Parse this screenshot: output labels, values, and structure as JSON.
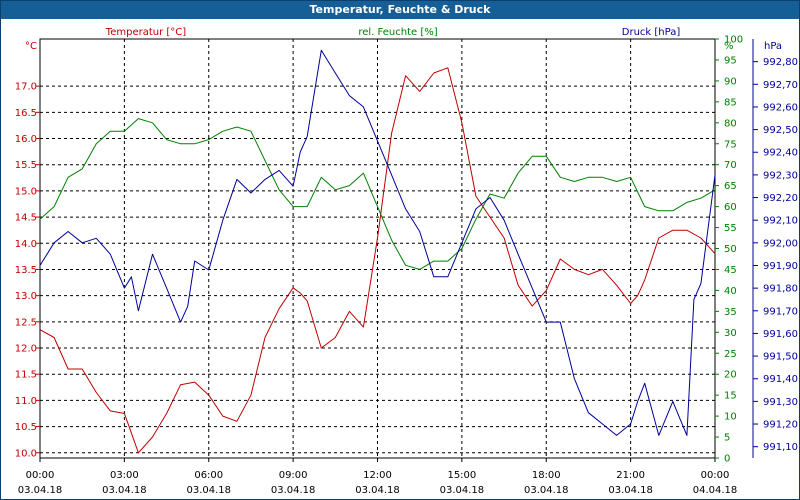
{
  "window": {
    "title": "Temperatur, Feuchte & Druck"
  },
  "chart_data": {
    "type": "line",
    "title": "Temperatur, Feuchte & Druck",
    "grid": true,
    "x": {
      "range": [
        "2018-04-03 00:00",
        "2018-04-04 00:00"
      ],
      "tick_times": [
        "00:00",
        "03:00",
        "06:00",
        "09:00",
        "12:00",
        "15:00",
        "18:00",
        "21:00",
        "00:00"
      ],
      "tick_dates": [
        "03.04.18",
        "03.04.18",
        "03.04.18",
        "03.04.18",
        "03.04.18",
        "03.04.18",
        "03.04.18",
        "03.04.18",
        "04.04.18"
      ]
    },
    "axes": {
      "temperature": {
        "label": "Temperatur [°C]",
        "unit": "°C",
        "color": "#c00000",
        "ylim": [
          9.9,
          17.9
        ],
        "ticks": [
          10.0,
          10.5,
          11.0,
          11.5,
          12.0,
          12.5,
          13.0,
          13.5,
          14.0,
          14.5,
          15.0,
          15.5,
          16.0,
          16.5,
          17.0
        ],
        "tick_labels": [
          "10.0",
          "10.5",
          "11.0",
          "11.5",
          "12.0",
          "12.5",
          "13.0",
          "13.5",
          "14.0",
          "14.5",
          "15.0",
          "15.5",
          "16.0",
          "16.5",
          "17.0"
        ]
      },
      "humidity": {
        "label": "rel. Feuchte [%]",
        "unit": "%",
        "color": "#008000",
        "ylim": [
          0,
          100
        ],
        "ticks": [
          0,
          5,
          10,
          15,
          20,
          25,
          30,
          35,
          40,
          45,
          50,
          55,
          60,
          65,
          70,
          75,
          80,
          85,
          90,
          95,
          100
        ],
        "tick_labels": [
          "0",
          "5",
          "10",
          "15",
          "20",
          "25",
          "30",
          "35",
          "40",
          "45",
          "50",
          "55",
          "60",
          "65",
          "70",
          "75",
          "80",
          "85",
          "90",
          "95",
          "100"
        ]
      },
      "pressure": {
        "label": "Druck [hPa]",
        "unit": "hPa",
        "color": "#000099",
        "ylim": [
          991.05,
          992.9
        ],
        "ticks": [
          991.1,
          991.2,
          991.3,
          991.4,
          991.5,
          991.6,
          991.7,
          991.8,
          991.9,
          992.0,
          992.1,
          992.2,
          992.3,
          992.4,
          992.5,
          992.6,
          992.7,
          992.8
        ],
        "tick_labels": [
          "991,10",
          "991,20",
          "991,30",
          "991,40",
          "991,50",
          "991,60",
          "991,70",
          "991,80",
          "991,90",
          "992,00",
          "992,10",
          "992,20",
          "992,30",
          "992,40",
          "992,50",
          "992,60",
          "992,70",
          "992,80"
        ]
      }
    },
    "series": [
      {
        "name": "Temperatur [°C]",
        "axis": "temperature",
        "color": "#c00000",
        "x_hours": [
          0,
          0.5,
          1,
          1.5,
          2,
          2.5,
          3,
          3.5,
          4,
          4.5,
          5,
          5.5,
          6,
          6.5,
          7,
          7.5,
          8,
          8.5,
          9,
          9.25,
          9.5,
          10,
          10.5,
          11,
          11.5,
          12,
          12.5,
          13,
          13.5,
          14,
          14.5,
          15,
          15.5,
          16,
          16.5,
          17,
          17.5,
          18,
          18.5,
          19,
          19.5,
          20,
          20.5,
          21,
          21.25,
          21.5,
          22,
          22.5,
          23,
          23.5,
          24
        ],
        "values": [
          12.35,
          12.2,
          11.6,
          11.6,
          11.15,
          10.8,
          10.75,
          10.0,
          10.3,
          10.75,
          11.3,
          11.35,
          11.1,
          10.7,
          10.6,
          11.1,
          12.2,
          12.75,
          13.15,
          13.05,
          12.9,
          12.0,
          12.2,
          12.7,
          12.4,
          14.1,
          16.1,
          17.2,
          16.9,
          17.25,
          17.35,
          16.3,
          14.9,
          14.5,
          14.1,
          13.2,
          12.8,
          13.1,
          13.7,
          13.5,
          13.4,
          13.5,
          13.2,
          12.85,
          13.0,
          13.3,
          14.1,
          14.25,
          14.25,
          14.1,
          13.8
        ]
      },
      {
        "name": "rel. Feuchte [%]",
        "axis": "humidity",
        "color": "#008000",
        "x_hours": [
          0,
          0.5,
          1,
          1.5,
          2,
          2.5,
          3,
          3.5,
          4,
          4.5,
          5,
          5.5,
          6,
          6.5,
          7,
          7.5,
          8,
          8.5,
          9,
          9.5,
          10,
          10.5,
          11,
          11.5,
          12,
          12.5,
          13,
          13.5,
          14,
          14.5,
          15,
          15.5,
          16,
          16.5,
          17,
          17.5,
          18,
          18.5,
          19,
          19.5,
          20,
          20.5,
          21,
          21.5,
          22,
          22.5,
          23,
          23.5,
          24
        ],
        "values": [
          57,
          60,
          67,
          69,
          75,
          78,
          78,
          81,
          80,
          76,
          75,
          75,
          76,
          78,
          79,
          78,
          71,
          64,
          60,
          60,
          67,
          64,
          65,
          68,
          60,
          52,
          46,
          45,
          47,
          47,
          50,
          57,
          63,
          62,
          68,
          72,
          72,
          67,
          66,
          67,
          67,
          66,
          67,
          60,
          59,
          59,
          61,
          62,
          64
        ]
      },
      {
        "name": "Druck [hPa]",
        "axis": "pressure",
        "color": "#000099",
        "x_hours": [
          0,
          0.5,
          1,
          1.5,
          2,
          2.5,
          3,
          3.25,
          3.5,
          4,
          4.5,
          5,
          5.25,
          5.5,
          6,
          6.5,
          7,
          7.5,
          8,
          8.5,
          9,
          9.25,
          9.5,
          10,
          10.5,
          11,
          11.5,
          12,
          12.5,
          13,
          13.5,
          14,
          14.5,
          15,
          15.5,
          16,
          16.5,
          17,
          17.5,
          18,
          18.5,
          19,
          19.5,
          20,
          20.5,
          21,
          21.25,
          21.5,
          22,
          22.5,
          23,
          23.25,
          23.5,
          24
        ],
        "values": [
          991.9,
          992.0,
          992.05,
          992.0,
          992.02,
          991.95,
          991.8,
          991.85,
          991.7,
          991.95,
          991.8,
          991.65,
          991.72,
          991.92,
          991.88,
          992.1,
          992.28,
          992.22,
          992.28,
          992.32,
          992.25,
          992.4,
          992.47,
          992.85,
          992.75,
          992.65,
          992.6,
          992.45,
          992.3,
          992.15,
          992.05,
          991.85,
          991.85,
          992.0,
          992.15,
          992.2,
          992.1,
          991.95,
          991.8,
          991.65,
          991.65,
          991.4,
          991.25,
          991.2,
          991.15,
          991.2,
          991.3,
          991.38,
          991.15,
          991.3,
          991.15,
          991.75,
          991.82,
          992.3
        ]
      }
    ]
  }
}
